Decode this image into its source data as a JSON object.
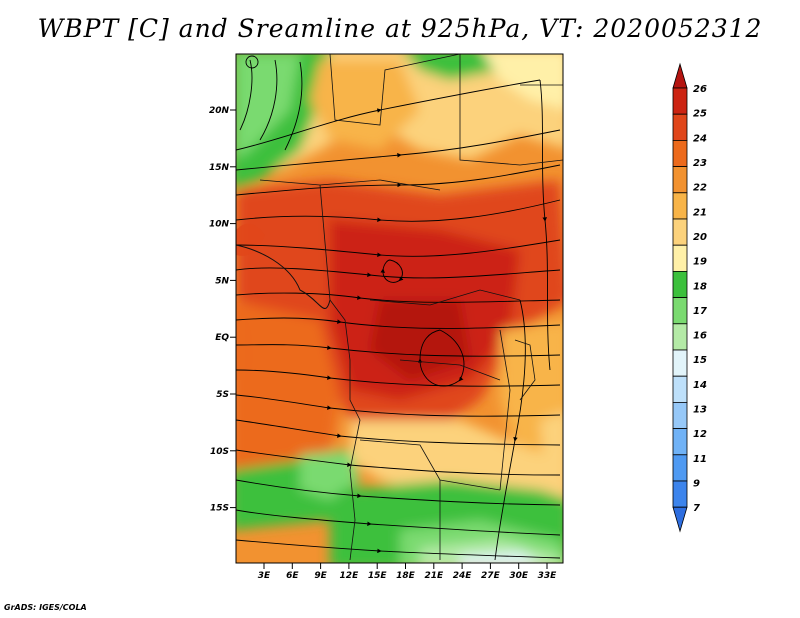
{
  "title": "WBPT [C] and Sreamline at 925hPa, VT: 2020052312",
  "credit": "GrADS: IGES/COLA",
  "map": {
    "variable": "Wet-bulb potential temperature",
    "units": "C",
    "level": "925hPa",
    "valid_time": "2020052312",
    "lon_ticks": [
      "3E",
      "6E",
      "9E",
      "12E",
      "15E",
      "18E",
      "21E",
      "24E",
      "27E",
      "30E",
      "33E"
    ],
    "lat_ticks": [
      "20N",
      "15N",
      "10N",
      "5N",
      "EQ",
      "5S",
      "10S",
      "15S"
    ]
  },
  "colorbar": {
    "labels": [
      "7",
      "9",
      "11",
      "12",
      "13",
      "14",
      "15",
      "16",
      "17",
      "18",
      "19",
      "20",
      "21",
      "22",
      "23",
      "24",
      "25",
      "26"
    ],
    "colors": [
      "#2e6ee0",
      "#3c84ec",
      "#4f9af2",
      "#70b2f6",
      "#96c8f8",
      "#bee0fa",
      "#e2f4fa",
      "#b4eaa6",
      "#7ada70",
      "#3cc03c",
      "#fff0a8",
      "#fcd27c",
      "#f8b448",
      "#f29230",
      "#ec6a1c",
      "#e0461a",
      "#cc2412",
      "#b41410"
    ]
  }
}
